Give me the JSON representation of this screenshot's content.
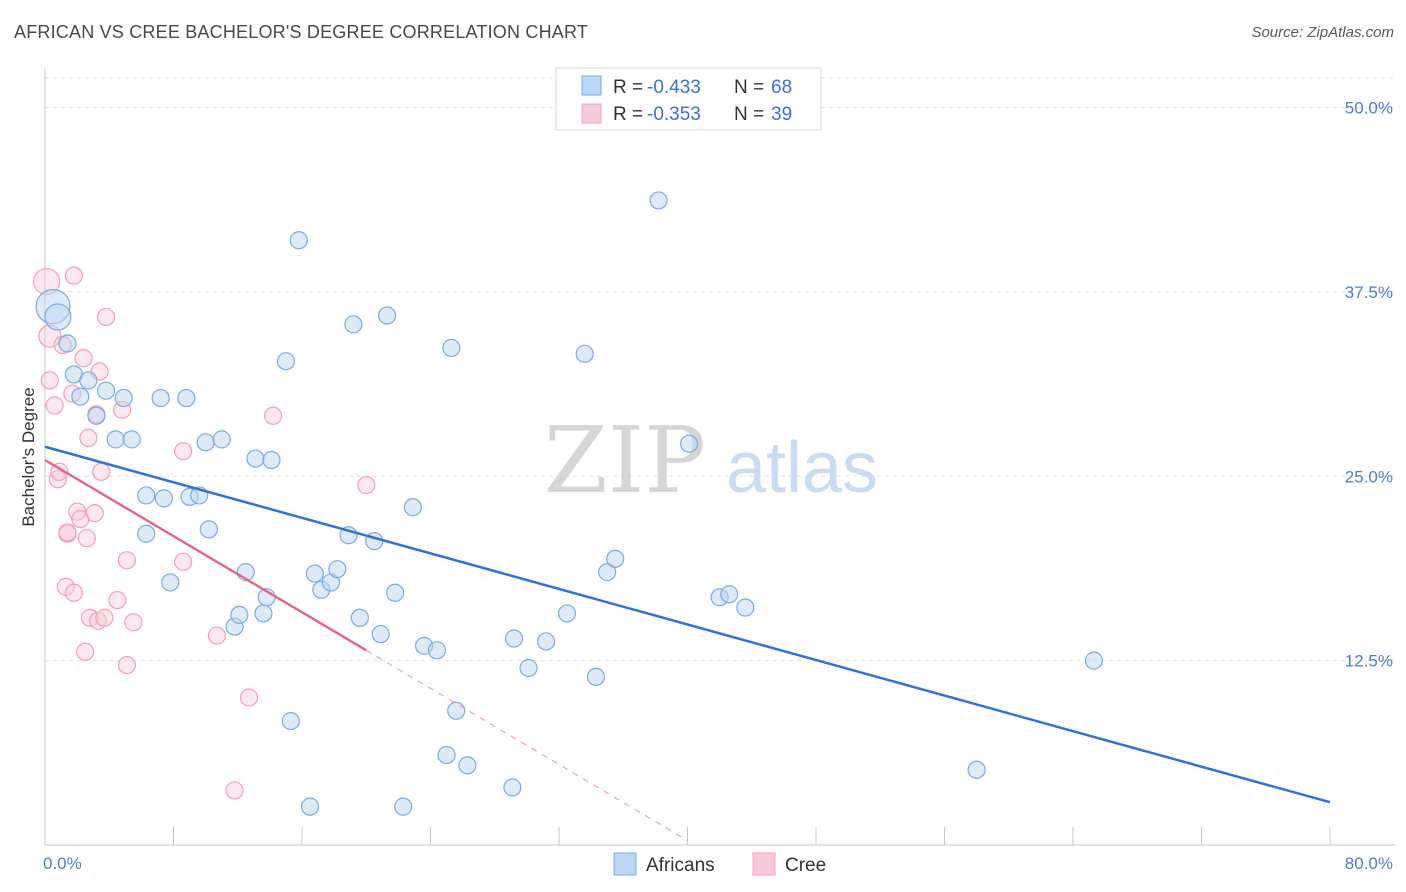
{
  "title": "AFRICAN VS CREE BACHELOR'S DEGREE CORRELATION CHART",
  "source": "Source: ZipAtlas.com",
  "watermark": {
    "part1": "ZIP",
    "part2": "atlas"
  },
  "legend": {
    "r_label": "R =",
    "n_label": "N =",
    "rows": [
      {
        "r": "-0.433",
        "n": "68"
      },
      {
        "r": "-0.353",
        "n": "39"
      }
    ]
  },
  "chart_data": {
    "type": "scatter",
    "title": "AFRICAN VS CREE BACHELOR'S DEGREE CORRELATION CHART",
    "xlabel": "",
    "ylabel": "Bachelor's Degree",
    "xlim": [
      0,
      80
    ],
    "ylim": [
      0,
      52
    ],
    "x_tick_labels": [
      "0.0%",
      "80.0%"
    ],
    "y_ticks": [
      12.5,
      25.0,
      37.5,
      50.0
    ],
    "y_tick_labels": [
      "12.5%",
      "25.0%",
      "37.5%",
      "50.0%"
    ],
    "grid": true,
    "legend_position": "top-center",
    "colors": {
      "africans": "#7aaae6",
      "cree": "#f2a0b8",
      "africans_line": "#2f74d0",
      "cree_line": "#e06890"
    },
    "series": [
      {
        "name": "Africans",
        "r": -0.433,
        "n": 68,
        "trend": {
          "x": [
            0,
            80
          ],
          "y": [
            27.0,
            2.9
          ]
        },
        "points": [
          [
            0.5,
            36.5
          ],
          [
            0.8,
            35.8
          ],
          [
            1.4,
            34.0
          ],
          [
            1.8,
            31.9
          ],
          [
            2.2,
            30.4
          ],
          [
            2.7,
            31.5
          ],
          [
            3.2,
            29.1
          ],
          [
            3.8,
            30.8
          ],
          [
            4.4,
            27.5
          ],
          [
            4.9,
            30.3
          ],
          [
            5.4,
            27.5
          ],
          [
            6.3,
            21.1
          ],
          [
            6.3,
            23.7
          ],
          [
            7.2,
            30.3
          ],
          [
            7.4,
            23.5
          ],
          [
            7.8,
            17.8
          ],
          [
            8.8,
            30.3
          ],
          [
            9.0,
            23.6
          ],
          [
            9.6,
            23.7
          ],
          [
            10.0,
            27.3
          ],
          [
            10.2,
            21.4
          ],
          [
            11.0,
            27.5
          ],
          [
            11.8,
            14.8
          ],
          [
            12.1,
            15.6
          ],
          [
            12.5,
            18.5
          ],
          [
            13.1,
            26.2
          ],
          [
            13.6,
            15.7
          ],
          [
            13.8,
            16.8
          ],
          [
            14.1,
            26.1
          ],
          [
            15.0,
            32.8
          ],
          [
            15.3,
            8.4
          ],
          [
            15.8,
            41.0
          ],
          [
            16.5,
            2.6
          ],
          [
            16.8,
            18.4
          ],
          [
            17.2,
            17.3
          ],
          [
            17.8,
            17.8
          ],
          [
            18.2,
            18.7
          ],
          [
            18.9,
            21.0
          ],
          [
            19.2,
            35.3
          ],
          [
            19.6,
            15.4
          ],
          [
            20.5,
            20.6
          ],
          [
            20.9,
            14.3
          ],
          [
            21.3,
            35.9
          ],
          [
            21.8,
            17.1
          ],
          [
            22.3,
            2.6
          ],
          [
            22.9,
            22.9
          ],
          [
            23.6,
            13.5
          ],
          [
            24.4,
            13.2
          ],
          [
            25.0,
            6.1
          ],
          [
            25.3,
            33.7
          ],
          [
            25.6,
            9.1
          ],
          [
            26.3,
            5.4
          ],
          [
            29.1,
            3.9
          ],
          [
            29.2,
            14.0
          ],
          [
            30.1,
            12.0
          ],
          [
            31.2,
            13.8
          ],
          [
            32.5,
            15.7
          ],
          [
            33.6,
            33.3
          ],
          [
            34.3,
            11.4
          ],
          [
            35.0,
            18.5
          ],
          [
            35.5,
            19.4
          ],
          [
            38.2,
            43.7
          ],
          [
            40.1,
            27.2
          ],
          [
            42.0,
            16.8
          ],
          [
            42.6,
            17.0
          ],
          [
            43.6,
            16.1
          ],
          [
            58.0,
            5.1
          ],
          [
            65.3,
            12.5
          ]
        ]
      },
      {
        "name": "Cree",
        "r": -0.353,
        "n": 39,
        "trend": {
          "x": [
            0,
            20.0
          ],
          "y": [
            26.1,
            13.2
          ]
        },
        "trend_extension": {
          "x": [
            20.0,
            40.0
          ],
          "y": [
            13.2,
            0.3
          ]
        },
        "points": [
          [
            0.1,
            38.2
          ],
          [
            0.3,
            34.5
          ],
          [
            0.3,
            31.5
          ],
          [
            0.6,
            29.8
          ],
          [
            0.8,
            24.8
          ],
          [
            0.9,
            25.3
          ],
          [
            1.1,
            33.9
          ],
          [
            1.3,
            17.5
          ],
          [
            1.4,
            21.1
          ],
          [
            1.4,
            21.2
          ],
          [
            1.7,
            30.6
          ],
          [
            1.8,
            38.6
          ],
          [
            1.8,
            17.1
          ],
          [
            2.0,
            22.6
          ],
          [
            2.2,
            22.1
          ],
          [
            2.4,
            33.0
          ],
          [
            2.5,
            13.1
          ],
          [
            2.6,
            20.8
          ],
          [
            2.7,
            27.6
          ],
          [
            2.8,
            15.4
          ],
          [
            3.1,
            22.5
          ],
          [
            3.2,
            29.2
          ],
          [
            3.3,
            15.2
          ],
          [
            3.4,
            32.1
          ],
          [
            3.5,
            25.3
          ],
          [
            3.7,
            15.4
          ],
          [
            3.8,
            35.8
          ],
          [
            4.5,
            16.6
          ],
          [
            4.8,
            29.5
          ],
          [
            5.1,
            12.2
          ],
          [
            5.1,
            19.3
          ],
          [
            5.5,
            15.1
          ],
          [
            8.6,
            19.2
          ],
          [
            8.6,
            26.7
          ],
          [
            10.7,
            14.2
          ],
          [
            11.8,
            3.7
          ],
          [
            12.7,
            10.0
          ],
          [
            14.2,
            29.1
          ],
          [
            20.0,
            24.4
          ]
        ]
      }
    ]
  },
  "bottom_legend": [
    "Africans",
    "Cree"
  ]
}
